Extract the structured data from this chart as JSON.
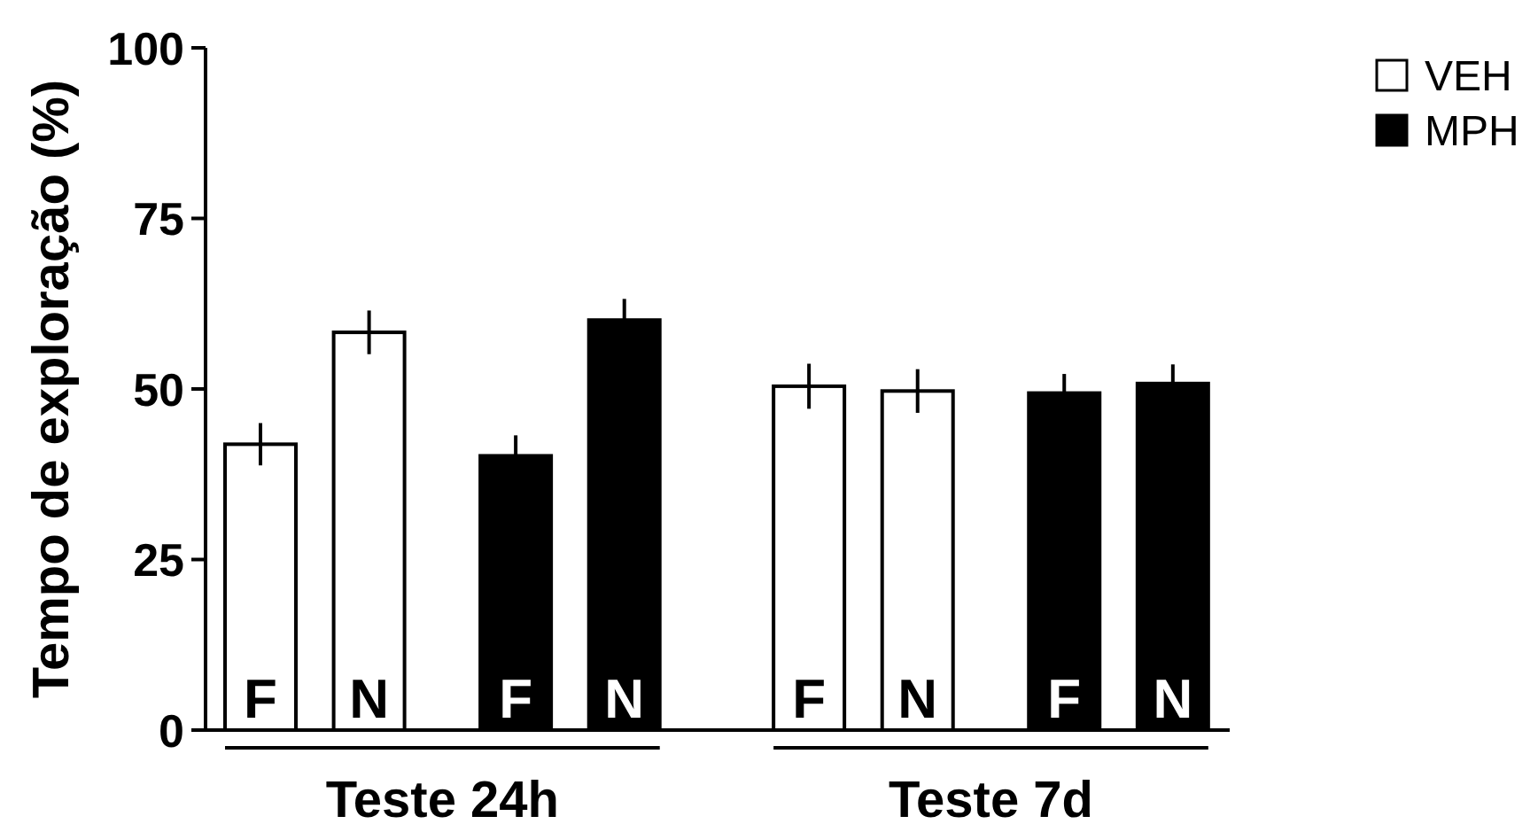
{
  "chart_data": {
    "type": "bar",
    "ylabel": "Tempo de exploração (%)",
    "categories": [
      "F",
      "N",
      "F",
      "N",
      "F",
      "N",
      "F",
      "N"
    ],
    "series": [
      {
        "name": "VEH",
        "color": "#ffffff",
        "values": [
          41.9,
          58.3,
          null,
          null,
          50.4,
          49.7,
          null,
          null
        ],
        "errors": [
          3.1,
          3.2,
          null,
          null,
          3.3,
          3.2,
          null,
          null
        ]
      },
      {
        "name": "MPH",
        "color": "#000000",
        "values": [
          null,
          null,
          40.2,
          60.1,
          null,
          null,
          49.4,
          50.8
        ],
        "errors": [
          null,
          null,
          3.0,
          3.1,
          null,
          null,
          2.8,
          2.8
        ]
      }
    ],
    "ylim": [
      0,
      100
    ],
    "yticks": [
      0,
      25,
      50,
      75,
      100
    ],
    "legend": "top right",
    "annotations": [
      "Teste 24h",
      "Teste 7d"
    ]
  }
}
